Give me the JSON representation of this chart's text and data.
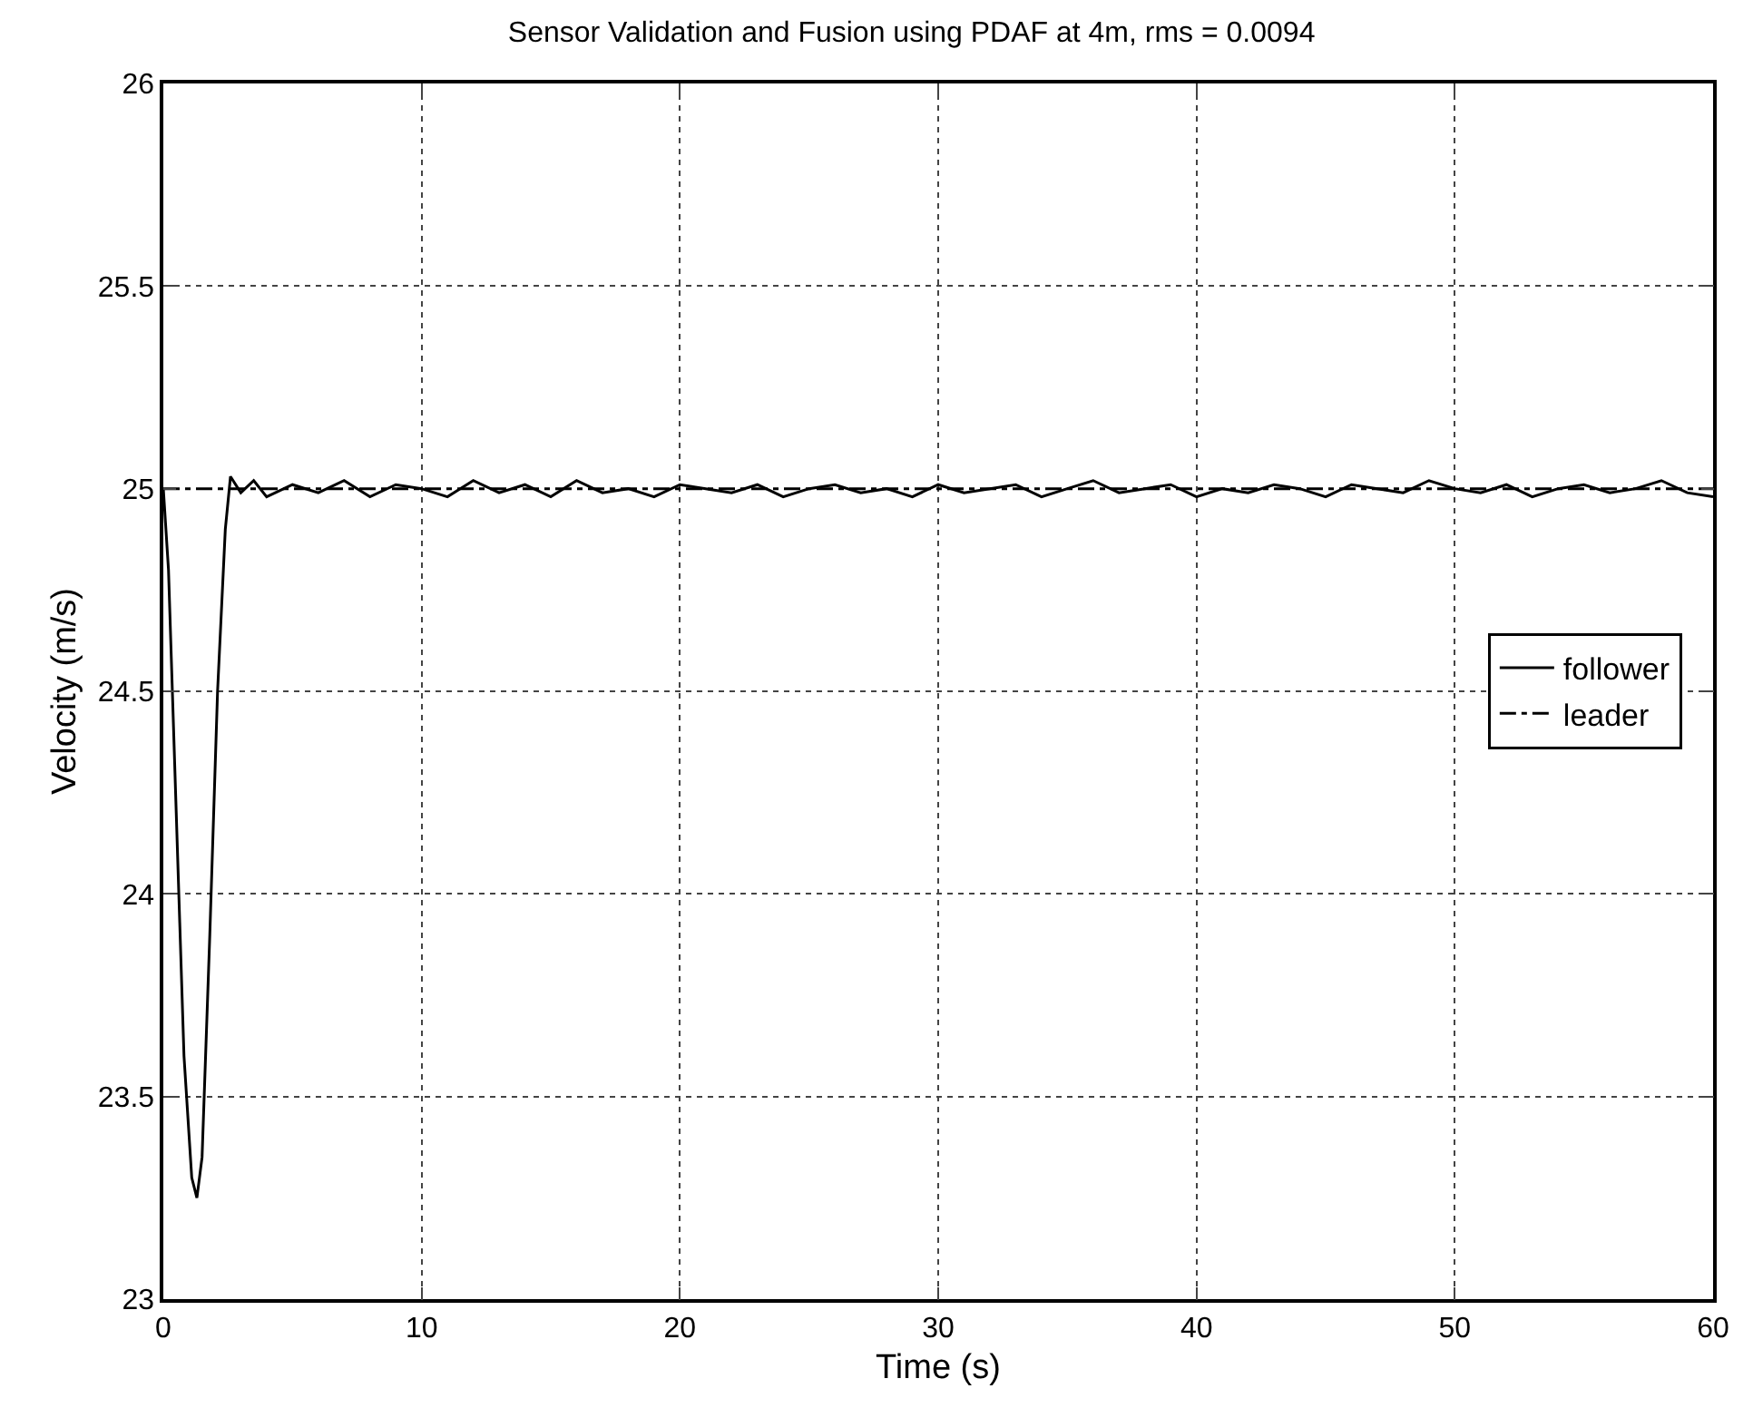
{
  "chart_data": {
    "type": "line",
    "title": "Sensor Validation and Fusion using PDAF at 4m, rms = 0.0094",
    "xlabel": "Time (s)",
    "ylabel": "Velocity (m/s)",
    "xlim": [
      0,
      60
    ],
    "xticks": [
      0,
      10,
      20,
      30,
      40,
      50,
      60
    ],
    "ylim": [
      23,
      26
    ],
    "yticks": [
      23,
      23.5,
      24,
      24.5,
      25,
      25.5,
      26
    ],
    "grid": true,
    "legend": "right",
    "marker": "none",
    "series": [
      {
        "name": "follower",
        "color": "#000000",
        "line_style": "solid",
        "x": [
          0,
          0.2,
          0.5,
          0.8,
          1.1,
          1.3,
          1.5,
          1.8,
          2.1,
          2.4,
          2.6,
          3,
          3.5,
          4,
          5,
          6,
          7,
          8,
          9,
          10,
          11,
          12,
          13,
          14,
          15,
          16,
          17,
          18,
          19,
          20,
          21,
          22,
          23,
          24,
          25,
          26,
          27,
          28,
          29,
          30,
          31,
          32,
          33,
          34,
          35,
          36,
          37,
          38,
          39,
          40,
          41,
          42,
          43,
          44,
          45,
          46,
          47,
          48,
          49,
          50,
          51,
          52,
          53,
          54,
          55,
          56,
          57,
          58,
          59,
          60
        ],
        "values": [
          25,
          24.8,
          24.2,
          23.6,
          23.3,
          23.25,
          23.35,
          23.9,
          24.5,
          24.9,
          25.03,
          24.99,
          25.02,
          24.98,
          25.01,
          24.99,
          25.02,
          24.98,
          25.01,
          25,
          24.98,
          25.02,
          24.99,
          25.01,
          24.98,
          25.02,
          24.99,
          25,
          24.98,
          25.01,
          25,
          24.99,
          25.01,
          24.98,
          25,
          25.01,
          24.99,
          25,
          24.98,
          25.01,
          24.99,
          25,
          25.01,
          24.98,
          25,
          25.02,
          24.99,
          25,
          25.01,
          24.98,
          25,
          24.99,
          25.01,
          25,
          24.98,
          25.01,
          25,
          24.99,
          25.02,
          25,
          24.99,
          25.01,
          24.98,
          25,
          25.01,
          24.99,
          25,
          25.02,
          24.99,
          24.98
        ]
      },
      {
        "name": "leader",
        "color": "#000000",
        "line_style": "dashdot",
        "x": [
          0,
          60
        ],
        "values": [
          25,
          25
        ]
      }
    ]
  }
}
